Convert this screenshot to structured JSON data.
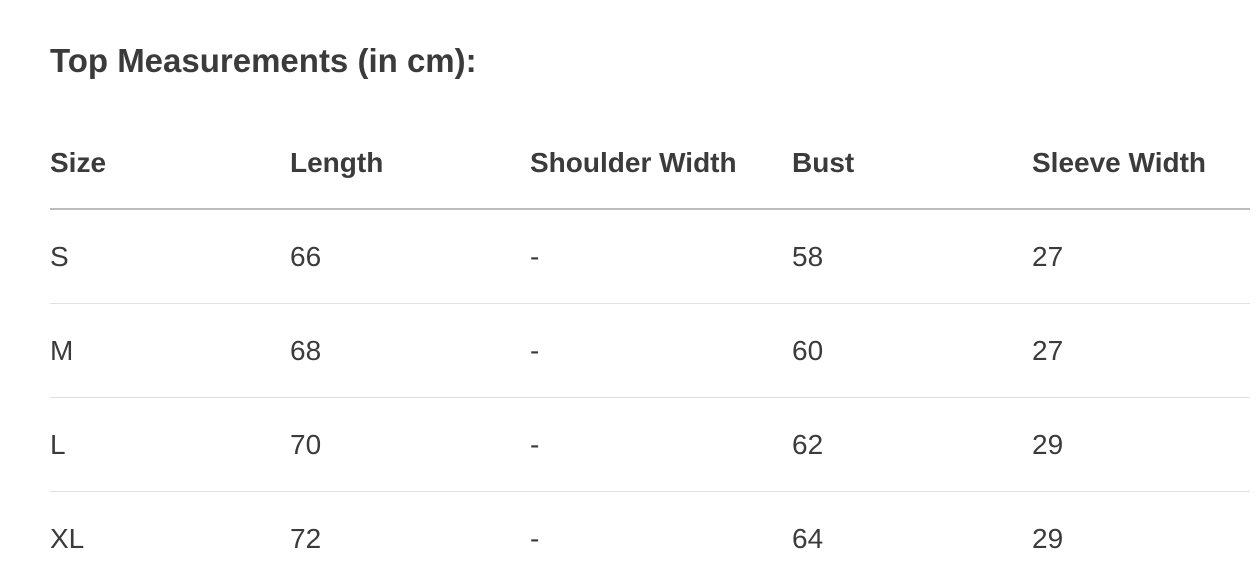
{
  "title": "Top Measurements (in cm):",
  "table": {
    "headers": [
      "Size",
      "Length",
      "Shoulder Width",
      "Bust",
      "Sleeve Width"
    ],
    "rows": [
      [
        "S",
        "66",
        "-",
        "58",
        "27"
      ],
      [
        "M",
        "68",
        "-",
        "60",
        "27"
      ],
      [
        "L",
        "70",
        "-",
        "62",
        "29"
      ],
      [
        "XL",
        "72",
        "-",
        "64",
        "29"
      ]
    ]
  }
}
